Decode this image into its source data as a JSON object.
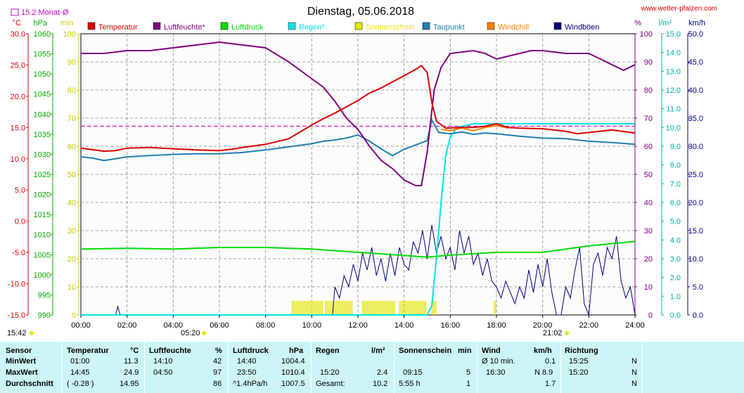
{
  "header": {
    "title": "Dienstag, 05.06.2018",
    "site": "www.wetter-pfalzen.com",
    "monthly_avg_label": "15.2 Monat-Ø"
  },
  "axis_units": {
    "temp": "°C",
    "pressure": "hPa",
    "minutes": "min",
    "percent": "%",
    "rain": "l/m²",
    "wind": "km/h"
  },
  "legend": [
    {
      "label": "Temperatur",
      "color": "#dd0000"
    },
    {
      "label": "Luftfeuchte*",
      "color": "#800080"
    },
    {
      "label": "Luftdruck",
      "color": "#00dd00"
    },
    {
      "label": "Regen*",
      "color": "#00e5e5"
    },
    {
      "label": "Sonnenschein",
      "color": "#e5e500"
    },
    {
      "label": "Taupunkt",
      "color": "#1f7fb0"
    },
    {
      "label": "Windchill",
      "color": "#ff7f00"
    },
    {
      "label": "Windböen",
      "color": "#000080"
    }
  ],
  "sun_labels": {
    "sunrise": "05:20",
    "sunset": "21:02",
    "time": "15:42"
  },
  "chart_data": {
    "type": "line",
    "title": "Dienstag, 05.06.2018",
    "x_ticks": [
      "00:00",
      "02:00",
      "04:00",
      "06:00",
      "08:00",
      "10:00",
      "12:00",
      "14:00",
      "16:00",
      "18:00",
      "20:00",
      "22:00",
      "24:00"
    ],
    "xlim": [
      0,
      24
    ],
    "axes": {
      "temp": {
        "ticks": [
          "30.0",
          "25.0",
          "20.0",
          "15.0",
          "10.0",
          "5.0",
          "0.0",
          "-5.0",
          "-10.0",
          "-15.0"
        ],
        "range": [
          -15,
          30
        ],
        "color": "#dd0000"
      },
      "pressure": {
        "ticks": [
          "1060",
          "1055",
          "1050",
          "1045",
          "1040",
          "1035",
          "1030",
          "1025",
          "1020",
          "1015",
          "1010",
          "1005",
          "1000",
          "995",
          "990"
        ],
        "range": [
          990,
          1060
        ],
        "color": "#00aa00"
      },
      "sunshine": {
        "ticks": [
          "100",
          "90",
          "80",
          "70",
          "60",
          "50",
          "40",
          "30",
          "20",
          "10",
          "0"
        ],
        "range": [
          0,
          100
        ],
        "color": "#e5e500"
      },
      "humidity": {
        "ticks": [
          "100",
          "90",
          "80",
          "70",
          "60",
          "50",
          "40",
          "30",
          "20",
          "10",
          "0"
        ],
        "range": [
          0,
          100
        ],
        "color": "#800080"
      },
      "rain": {
        "ticks": [
          "15.0",
          "14.0",
          "13.0",
          "12.0",
          "11.0",
          "10.0",
          "9.0",
          "8.0",
          "7.0",
          "6.0",
          "5.0",
          "4.0",
          "3.0",
          "2.0",
          "1.0",
          "0.0"
        ],
        "range": [
          0,
          15
        ],
        "color": "#00c0c0"
      },
      "wind": {
        "ticks": [
          "50.0",
          "45.0",
          "40.0",
          "35.0",
          "30.0",
          "25.0",
          "20.0",
          "15.0",
          "10.0",
          "5.0",
          "0.0"
        ],
        "range": [
          0,
          50
        ],
        "color": "#000080"
      }
    },
    "monthly_avg_temp": 15.2,
    "series": [
      {
        "name": "Temperatur",
        "axis": "temp",
        "color": "#dd0000",
        "points": [
          [
            0,
            11.7
          ],
          [
            1,
            11.2
          ],
          [
            1.5,
            11.3
          ],
          [
            2,
            11.7
          ],
          [
            3,
            11.8
          ],
          [
            4,
            11.6
          ],
          [
            5,
            11.4
          ],
          [
            6,
            11.3
          ],
          [
            6.5,
            11.5
          ],
          [
            7,
            11.8
          ],
          [
            8,
            12.3
          ],
          [
            9,
            13.2
          ],
          [
            9.5,
            14.3
          ],
          [
            10,
            15.4
          ],
          [
            10.5,
            16.4
          ],
          [
            11,
            17.3
          ],
          [
            11.5,
            18.3
          ],
          [
            12,
            19.3
          ],
          [
            12.5,
            20.5
          ],
          [
            13,
            21.3
          ],
          [
            13.5,
            22.3
          ],
          [
            14,
            23.3
          ],
          [
            14.5,
            24.3
          ],
          [
            14.75,
            24.9
          ],
          [
            15,
            23.8
          ],
          [
            15.2,
            19
          ],
          [
            15.4,
            16
          ],
          [
            15.8,
            14.9
          ],
          [
            16.5,
            15.0
          ],
          [
            17,
            15.0
          ],
          [
            17.5,
            15.2
          ],
          [
            18,
            15.6
          ],
          [
            18.5,
            15.0
          ],
          [
            19,
            14.9
          ],
          [
            20,
            14.8
          ],
          [
            21,
            14.4
          ],
          [
            21.5,
            14.0
          ],
          [
            22,
            14.2
          ],
          [
            23,
            14.6
          ],
          [
            24,
            14.1
          ]
        ]
      },
      {
        "name": "Taupunkt",
        "axis": "temp",
        "color": "#1f7fb0",
        "points": [
          [
            0,
            10.3
          ],
          [
            0.5,
            10.1
          ],
          [
            1,
            9.7
          ],
          [
            2,
            10.3
          ],
          [
            3,
            10.5
          ],
          [
            4,
            10.7
          ],
          [
            5,
            10.8
          ],
          [
            6,
            10.8
          ],
          [
            7,
            11.0
          ],
          [
            8,
            11.4
          ],
          [
            9,
            11.9
          ],
          [
            10,
            12.4
          ],
          [
            10.5,
            12.8
          ],
          [
            11,
            13.0
          ],
          [
            11.5,
            13.3
          ],
          [
            12,
            13.8
          ],
          [
            12.5,
            12.8
          ],
          [
            13,
            11.6
          ],
          [
            13.5,
            10.5
          ],
          [
            14,
            11.5
          ],
          [
            14.5,
            12.2
          ],
          [
            15,
            12.9
          ],
          [
            15.2,
            16.2
          ],
          [
            15.5,
            14.2
          ],
          [
            16,
            14.0
          ],
          [
            16.5,
            14.3
          ],
          [
            17,
            13.9
          ],
          [
            17.5,
            14.1
          ],
          [
            18,
            14.0
          ],
          [
            18.5,
            13.8
          ],
          [
            19,
            13.6
          ],
          [
            20,
            13.3
          ],
          [
            21,
            13.2
          ],
          [
            22,
            12.8
          ],
          [
            23,
            12.6
          ],
          [
            24,
            12.3
          ]
        ]
      },
      {
        "name": "Windchill",
        "axis": "temp",
        "color": "#ff7f00",
        "points": [
          [
            15.6,
            14.7
          ],
          [
            16,
            14.5
          ],
          [
            16.5,
            14.9
          ],
          [
            17,
            14.5
          ],
          [
            17.5,
            15.0
          ],
          [
            18,
            15.3
          ],
          [
            18.5,
            14.9
          ]
        ]
      },
      {
        "name": "Luftfeuchte*",
        "axis": "humidity",
        "color": "#800080",
        "points": [
          [
            0,
            93
          ],
          [
            1,
            93
          ],
          [
            2,
            94
          ],
          [
            3,
            94
          ],
          [
            4,
            95
          ],
          [
            5,
            96
          ],
          [
            6,
            97
          ],
          [
            7,
            96
          ],
          [
            8,
            95
          ],
          [
            9,
            90
          ],
          [
            10,
            84
          ],
          [
            10.5,
            81
          ],
          [
            11,
            76
          ],
          [
            11.5,
            70
          ],
          [
            12,
            66
          ],
          [
            12.5,
            60
          ],
          [
            13,
            55
          ],
          [
            13.5,
            52
          ],
          [
            14,
            48
          ],
          [
            14.5,
            46
          ],
          [
            14.75,
            46
          ],
          [
            15,
            58
          ],
          [
            15.3,
            80
          ],
          [
            15.6,
            88
          ],
          [
            16,
            93
          ],
          [
            17,
            94
          ],
          [
            17.5,
            93
          ],
          [
            18,
            91
          ],
          [
            19,
            93
          ],
          [
            19.5,
            94
          ],
          [
            20,
            94
          ],
          [
            21,
            93
          ],
          [
            22,
            93
          ],
          [
            22.5,
            91
          ],
          [
            23,
            89
          ],
          [
            23.5,
            87
          ],
          [
            24,
            89
          ]
        ]
      },
      {
        "name": "Luftdruck",
        "axis": "pressure",
        "color": "#00dd00",
        "points": [
          [
            0,
            1006.4
          ],
          [
            2,
            1006.6
          ],
          [
            4,
            1006.4
          ],
          [
            6,
            1006.8
          ],
          [
            8,
            1006.8
          ],
          [
            10,
            1006.4
          ],
          [
            12,
            1005.6
          ],
          [
            14,
            1004.8
          ],
          [
            15,
            1004.4
          ],
          [
            16,
            1004.9
          ],
          [
            18,
            1005.6
          ],
          [
            20,
            1005.6
          ],
          [
            22,
            1007.2
          ],
          [
            24,
            1008.3
          ]
        ]
      },
      {
        "name": "Regen*",
        "axis": "rain",
        "color": "#00e5e5",
        "points": [
          [
            0,
            0
          ],
          [
            15,
            0
          ],
          [
            15.2,
            0.5
          ],
          [
            15.4,
            3
          ],
          [
            15.6,
            6
          ],
          [
            15.8,
            8.5
          ],
          [
            16,
            9.5
          ],
          [
            16.3,
            10
          ],
          [
            17,
            10.2
          ],
          [
            18,
            10.2
          ],
          [
            19,
            10.2
          ],
          [
            24,
            10.2
          ]
        ]
      },
      {
        "name": "Windböen",
        "axis": "wind",
        "color": "#000080",
        "points": [
          [
            0,
            0
          ],
          [
            1.5,
            0
          ],
          [
            1.6,
            1.5
          ],
          [
            1.7,
            0
          ],
          [
            10.9,
            0
          ],
          [
            11,
            5
          ],
          [
            11.2,
            3
          ],
          [
            11.4,
            7
          ],
          [
            11.6,
            5
          ],
          [
            11.8,
            9
          ],
          [
            12,
            6
          ],
          [
            12.2,
            11
          ],
          [
            12.4,
            8
          ],
          [
            12.6,
            12
          ],
          [
            12.8,
            7
          ],
          [
            13,
            10
          ],
          [
            13.2,
            6
          ],
          [
            13.4,
            11
          ],
          [
            13.6,
            7
          ],
          [
            13.8,
            12
          ],
          [
            14,
            9
          ],
          [
            14.2,
            8
          ],
          [
            14.4,
            13
          ],
          [
            14.6,
            11
          ],
          [
            14.8,
            15
          ],
          [
            15,
            10
          ],
          [
            15.2,
            16
          ],
          [
            15.4,
            11
          ],
          [
            15.6,
            14
          ],
          [
            15.8,
            10
          ],
          [
            16,
            12
          ],
          [
            16.2,
            8
          ],
          [
            16.4,
            15
          ],
          [
            16.6,
            11
          ],
          [
            16.8,
            14
          ],
          [
            17,
            9
          ],
          [
            17.2,
            11
          ],
          [
            17.4,
            7
          ],
          [
            17.6,
            10
          ],
          [
            17.8,
            6
          ],
          [
            18,
            5
          ],
          [
            18.2,
            3
          ],
          [
            18.4,
            6
          ],
          [
            18.6,
            4
          ],
          [
            18.8,
            2
          ],
          [
            19,
            5
          ],
          [
            19.2,
            3
          ],
          [
            19.4,
            8
          ],
          [
            19.6,
            4
          ],
          [
            19.8,
            9
          ],
          [
            20,
            5
          ],
          [
            20.2,
            10
          ],
          [
            20.4,
            4
          ],
          [
            20.6,
            0
          ],
          [
            20.8,
            0
          ],
          [
            21,
            5
          ],
          [
            21.2,
            3
          ],
          [
            21.4,
            8
          ],
          [
            21.6,
            12
          ],
          [
            21.8,
            2
          ],
          [
            22,
            0
          ],
          [
            22.2,
            9
          ],
          [
            22.4,
            11
          ],
          [
            22.6,
            7
          ],
          [
            22.8,
            12
          ],
          [
            23,
            10
          ],
          [
            23.2,
            14
          ],
          [
            23.4,
            6
          ],
          [
            23.6,
            3
          ],
          [
            23.8,
            5
          ],
          [
            24,
            0
          ]
        ]
      }
    ],
    "sunshine_periods": [
      [
        9.15,
        10.5
      ],
      [
        10.6,
        11.8
      ],
      [
        12.2,
        13.6
      ],
      [
        13.8,
        15.0
      ],
      [
        15.2,
        15.4
      ],
      [
        17.9,
        18.0
      ]
    ]
  },
  "stats_table": {
    "rows": [
      "Sensor",
      "MinWert",
      "MaxWert",
      "Durchschnitt"
    ],
    "temperatur": {
      "header": "Temperatur",
      "unit": "°C",
      "min_time": "01:00",
      "min": "11.3",
      "max_time": "14:45",
      "max": "24.9",
      "avg_note": "( -0.28 )",
      "avg": "14.95"
    },
    "luftfeuchte": {
      "header": "Luftfeuchte",
      "unit": "%",
      "min_time": "14:10",
      "min": "42",
      "max_time": "04:50",
      "max": "97",
      "avg": "86"
    },
    "luftdruck": {
      "header": "Luftdruck",
      "unit": "hPa",
      "min_time": "14:40",
      "min": "1004.4",
      "max_time": "23:50",
      "max": "1010.4",
      "avg_note": "^1.4hPa/h",
      "avg": "1007.5"
    },
    "regen": {
      "header": "Regen",
      "unit": "l/m²",
      "max_time": "15:20",
      "max": "2.4",
      "total_label": "Gesamt:",
      "total": "10.2"
    },
    "sonnenschein": {
      "header": "Sonnenschein",
      "unit": "min",
      "max_time": "09:15",
      "max": "5",
      "total_label": "5:55 h",
      "total": "1"
    },
    "wind": {
      "header": "Wind",
      "unit": "km/h",
      "min_label": "Ø 10 min.",
      "min": "0.1",
      "max_time": "16:30",
      "max": "N 8.9",
      "avg": "1.7"
    },
    "richtung": {
      "header": "Richtung",
      "min_time": "15:25",
      "min": "N",
      "max_time": "15:20",
      "max": "N",
      "avg": "N"
    }
  }
}
